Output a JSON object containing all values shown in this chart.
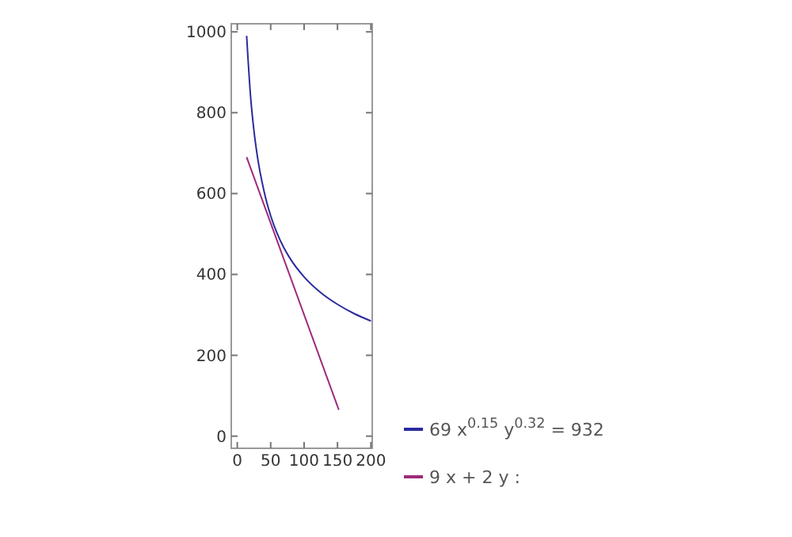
{
  "chart_data": {
    "type": "line",
    "xlim": [
      -9,
      202
    ],
    "ylim": [
      -30,
      1020
    ],
    "xticks": [
      0,
      50,
      100,
      150,
      200
    ],
    "yticks": [
      0,
      200,
      400,
      600,
      800,
      1000
    ],
    "grid": false,
    "legend": "bottom right",
    "series": [
      {
        "name": "69 x$^{0.15}$ y$^{0.32}$ = 932",
        "color": "#2b2b9e",
        "x": [
          14,
          20,
          25,
          30,
          40,
          50,
          60,
          70,
          80,
          100,
          125,
          150,
          175,
          200
        ],
        "values": [
          990,
          838,
          755,
          693,
          606,
          545,
          500,
          465,
          437,
          394,
          355,
          326,
          303,
          285
        ]
      },
      {
        "name": "9 x + 2 y :",
        "color": "#9e2b7a",
        "x": [
          14,
          152
        ],
        "values": [
          690,
          65
        ]
      }
    ]
  }
}
